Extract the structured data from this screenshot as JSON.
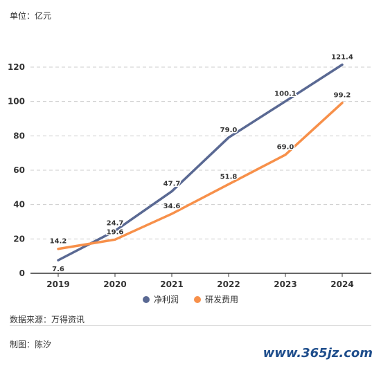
{
  "unit_label": "单位：亿元",
  "source": "数据来源：万得资讯",
  "author": "制图：陈汐",
  "watermark": "www.365jz.com",
  "colors": {
    "net_profit": "#5a6993",
    "rd_expense": "#f7904a",
    "grid": "#cccccc",
    "axis": "#333333"
  },
  "chart_data": {
    "type": "line",
    "categories": [
      "2019",
      "2020",
      "2021",
      "2022",
      "2023",
      "2024"
    ],
    "series": [
      {
        "name": "净利润",
        "values": [
          7.6,
          24.7,
          47.7,
          79.0,
          100.1,
          121.4
        ],
        "labels": [
          "7.6",
          "24.7",
          "47.7",
          "79.0",
          "100.1",
          "121.4"
        ]
      },
      {
        "name": "研发费用",
        "values": [
          14.2,
          19.6,
          34.6,
          51.8,
          69.0,
          99.2
        ],
        "labels": [
          "14.2",
          "19.6",
          "34.6",
          "51.8",
          "69.0",
          "99.2"
        ]
      }
    ],
    "ylim": [
      0,
      120
    ],
    "yticks": [
      0,
      20,
      40,
      60,
      80,
      100,
      120
    ],
    "grid": true,
    "legend_position": "bottom"
  }
}
